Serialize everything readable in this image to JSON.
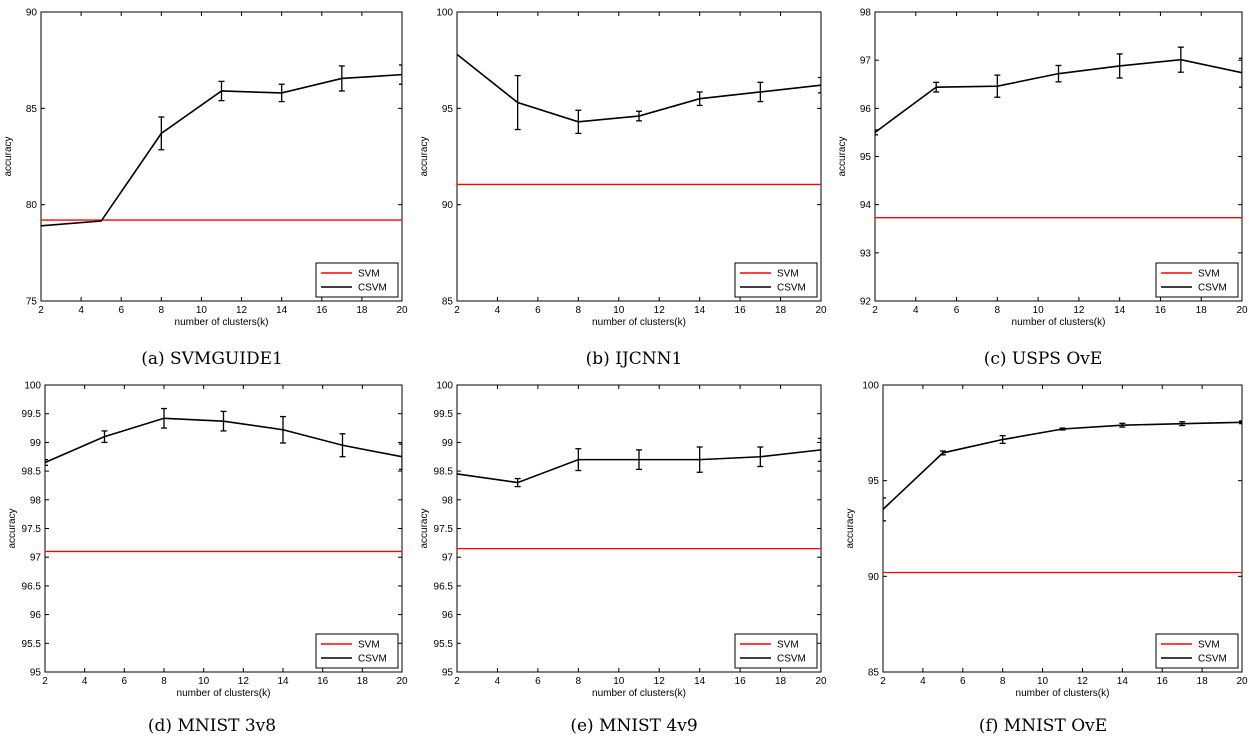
{
  "chart_data": [
    {
      "type": "line",
      "caption": "(a) SVMGUIDE1",
      "xlabel": "number of clusters(k)",
      "ylabel": "accuracy",
      "xlim": [
        2,
        20
      ],
      "ylim": [
        75,
        90
      ],
      "xticks": [
        "2",
        "4",
        "6",
        "8",
        "10",
        "12",
        "14",
        "16",
        "18",
        "20"
      ],
      "yticks": [
        "75",
        "80",
        "85",
        "90"
      ],
      "legend_position": "bottom-right",
      "series": [
        {
          "name": "SVM",
          "color": "#ff0000",
          "x": [
            2,
            20
          ],
          "y": [
            79.2,
            79.2
          ]
        },
        {
          "name": "CSVM",
          "color": "#000000",
          "x": [
            2,
            5,
            8,
            11,
            14,
            17,
            20
          ],
          "y": [
            78.9,
            79.15,
            83.7,
            85.9,
            85.8,
            86.55,
            86.75
          ],
          "err": [
            0.0,
            0.0,
            0.85,
            0.5,
            0.45,
            0.65,
            0.5
          ]
        }
      ]
    },
    {
      "type": "line",
      "caption": "(b) IJCNN1",
      "xlabel": "number of clusters(k)",
      "ylabel": "accuracy",
      "xlim": [
        2,
        20
      ],
      "ylim": [
        85,
        100
      ],
      "xticks": [
        "2",
        "4",
        "6",
        "8",
        "10",
        "12",
        "14",
        "16",
        "18",
        "20"
      ],
      "yticks": [
        "85",
        "90",
        "95",
        "100"
      ],
      "legend_position": "bottom-right",
      "series": [
        {
          "name": "SVM",
          "color": "#ff0000",
          "x": [
            2,
            20
          ],
          "y": [
            91.05,
            91.05
          ]
        },
        {
          "name": "CSVM",
          "color": "#000000",
          "x": [
            2,
            5,
            8,
            11,
            14,
            17,
            20
          ],
          "y": [
            97.8,
            95.3,
            94.3,
            94.6,
            95.5,
            95.85,
            96.2
          ],
          "err": [
            0.0,
            1.4,
            0.6,
            0.25,
            0.35,
            0.5,
            0.4
          ]
        }
      ]
    },
    {
      "type": "line",
      "caption": "(c) USPS OvE",
      "xlabel": "number of clusters(k)",
      "ylabel": "accuracy",
      "xlim": [
        2,
        20
      ],
      "ylim": [
        92,
        98
      ],
      "xticks": [
        "2",
        "4",
        "6",
        "8",
        "10",
        "12",
        "14",
        "16",
        "18",
        "20"
      ],
      "yticks": [
        "92",
        "93",
        "94",
        "95",
        "96",
        "97",
        "98"
      ],
      "legend_position": "bottom-right",
      "series": [
        {
          "name": "SVM",
          "color": "#ff0000",
          "x": [
            2,
            20
          ],
          "y": [
            93.73,
            93.73
          ]
        },
        {
          "name": "CSVM",
          "color": "#000000",
          "x": [
            2,
            5,
            8,
            11,
            14,
            17,
            20
          ],
          "y": [
            95.5,
            96.44,
            96.46,
            96.72,
            96.88,
            97.01,
            96.74
          ],
          "err": [
            0.05,
            0.1,
            0.23,
            0.17,
            0.25,
            0.26,
            0.3
          ]
        }
      ]
    },
    {
      "type": "line",
      "caption": "(d) MNIST 3v8",
      "xlabel": "number of clusters(k)",
      "ylabel": "accuracy",
      "xlim": [
        2,
        20
      ],
      "ylim": [
        95,
        100
      ],
      "xticks": [
        "2",
        "4",
        "6",
        "8",
        "10",
        "12",
        "14",
        "16",
        "18",
        "20"
      ],
      "yticks": [
        "95",
        "95.5",
        "96",
        "96.5",
        "97",
        "97.5",
        "98",
        "98.5",
        "99",
        "99.5",
        "100"
      ],
      "legend_position": "bottom-right",
      "series": [
        {
          "name": "SVM",
          "color": "#ff0000",
          "x": [
            2,
            20
          ],
          "y": [
            97.1,
            97.1
          ]
        },
        {
          "name": "CSVM",
          "color": "#000000",
          "x": [
            2,
            5,
            8,
            11,
            14,
            17,
            20
          ],
          "y": [
            98.65,
            99.1,
            99.42,
            99.37,
            99.22,
            98.95,
            98.75
          ],
          "err": [
            0.05,
            0.1,
            0.17,
            0.17,
            0.23,
            0.2,
            0.22
          ]
        }
      ]
    },
    {
      "type": "line",
      "caption": "(e) MNIST 4v9",
      "xlabel": "number of clusters(k)",
      "ylabel": "accuracy",
      "xlim": [
        2,
        20
      ],
      "ylim": [
        95,
        100
      ],
      "xticks": [
        "2",
        "4",
        "6",
        "8",
        "10",
        "12",
        "14",
        "16",
        "18",
        "20"
      ],
      "yticks": [
        "95",
        "95.5",
        "96",
        "96.5",
        "97",
        "97.5",
        "98",
        "98.5",
        "99",
        "99.5",
        "100"
      ],
      "legend_position": "bottom-right",
      "series": [
        {
          "name": "SVM",
          "color": "#ff0000",
          "x": [
            2,
            20
          ],
          "y": [
            97.15,
            97.15
          ]
        },
        {
          "name": "CSVM",
          "color": "#000000",
          "x": [
            2,
            5,
            8,
            11,
            14,
            17,
            20
          ],
          "y": [
            98.45,
            98.3,
            98.7,
            98.7,
            98.7,
            98.75,
            98.87
          ],
          "err": [
            0.0,
            0.07,
            0.19,
            0.17,
            0.22,
            0.17,
            0.2
          ]
        }
      ]
    },
    {
      "type": "line",
      "caption": "(f) MNIST OvE",
      "xlabel": "number of clusters(k)",
      "ylabel": "accuracy",
      "xlim": [
        2,
        20
      ],
      "ylim": [
        85,
        100
      ],
      "xticks": [
        "2",
        "4",
        "6",
        "8",
        "10",
        "12",
        "14",
        "16",
        "18",
        "20"
      ],
      "yticks": [
        "85",
        "90",
        "95",
        "100"
      ],
      "legend_position": "bottom-right",
      "series": [
        {
          "name": "SVM",
          "color": "#ff0000",
          "x": [
            2,
            20
          ],
          "y": [
            90.2,
            90.2
          ]
        },
        {
          "name": "CSVM",
          "color": "#000000",
          "x": [
            2,
            5,
            8,
            11,
            14,
            17,
            20
          ],
          "y": [
            93.5,
            96.45,
            97.15,
            97.7,
            97.9,
            97.98,
            98.05
          ],
          "err": [
            0.6,
            0.1,
            0.2,
            0.05,
            0.1,
            0.1,
            0.07
          ]
        }
      ]
    }
  ]
}
